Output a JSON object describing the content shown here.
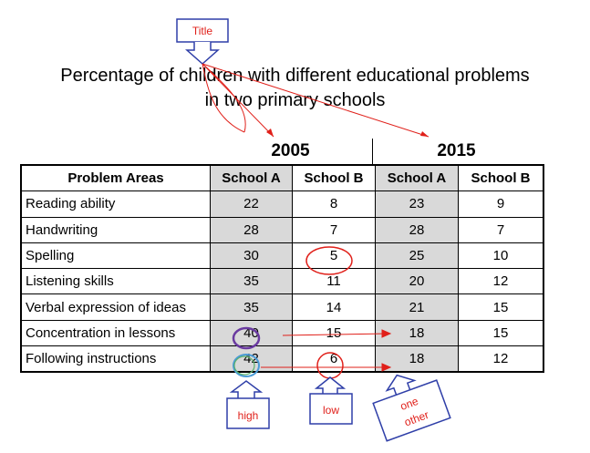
{
  "chart_data": {
    "type": "table",
    "title_line1": "Percentage of children with different educational problems",
    "title_line2": "in two primary schools",
    "years": [
      "2005",
      "2015"
    ],
    "columns": [
      "Problem Areas",
      "School A",
      "School B",
      "School A",
      "School B"
    ],
    "rows": [
      {
        "area": "Reading ability",
        "values": [
          22,
          8,
          23,
          9
        ]
      },
      {
        "area": "Handwriting",
        "values": [
          28,
          7,
          28,
          7
        ]
      },
      {
        "area": "Spelling",
        "values": [
          30,
          5,
          25,
          10
        ]
      },
      {
        "area": "Listening skills",
        "values": [
          35,
          11,
          20,
          12
        ]
      },
      {
        "area": "Verbal expression of ideas",
        "values": [
          35,
          14,
          21,
          15
        ]
      },
      {
        "area": "Concentration in lessons",
        "values": [
          40,
          15,
          18,
          15
        ]
      },
      {
        "area": "Following instructions",
        "values": [
          42,
          6,
          18,
          12
        ]
      }
    ]
  },
  "annotations": {
    "title_label": "Title",
    "high_label": "high",
    "low_label": "low",
    "other_label_1": "one",
    "other_label_2": "other",
    "colors": {
      "callout_box": "#2f3fa8",
      "callout_text": "#e0201a",
      "arrow": "#e0201a",
      "circle_red": "#e0201a",
      "circle_purple": "#6a3aa0",
      "shade": "#d9d9d9"
    }
  }
}
